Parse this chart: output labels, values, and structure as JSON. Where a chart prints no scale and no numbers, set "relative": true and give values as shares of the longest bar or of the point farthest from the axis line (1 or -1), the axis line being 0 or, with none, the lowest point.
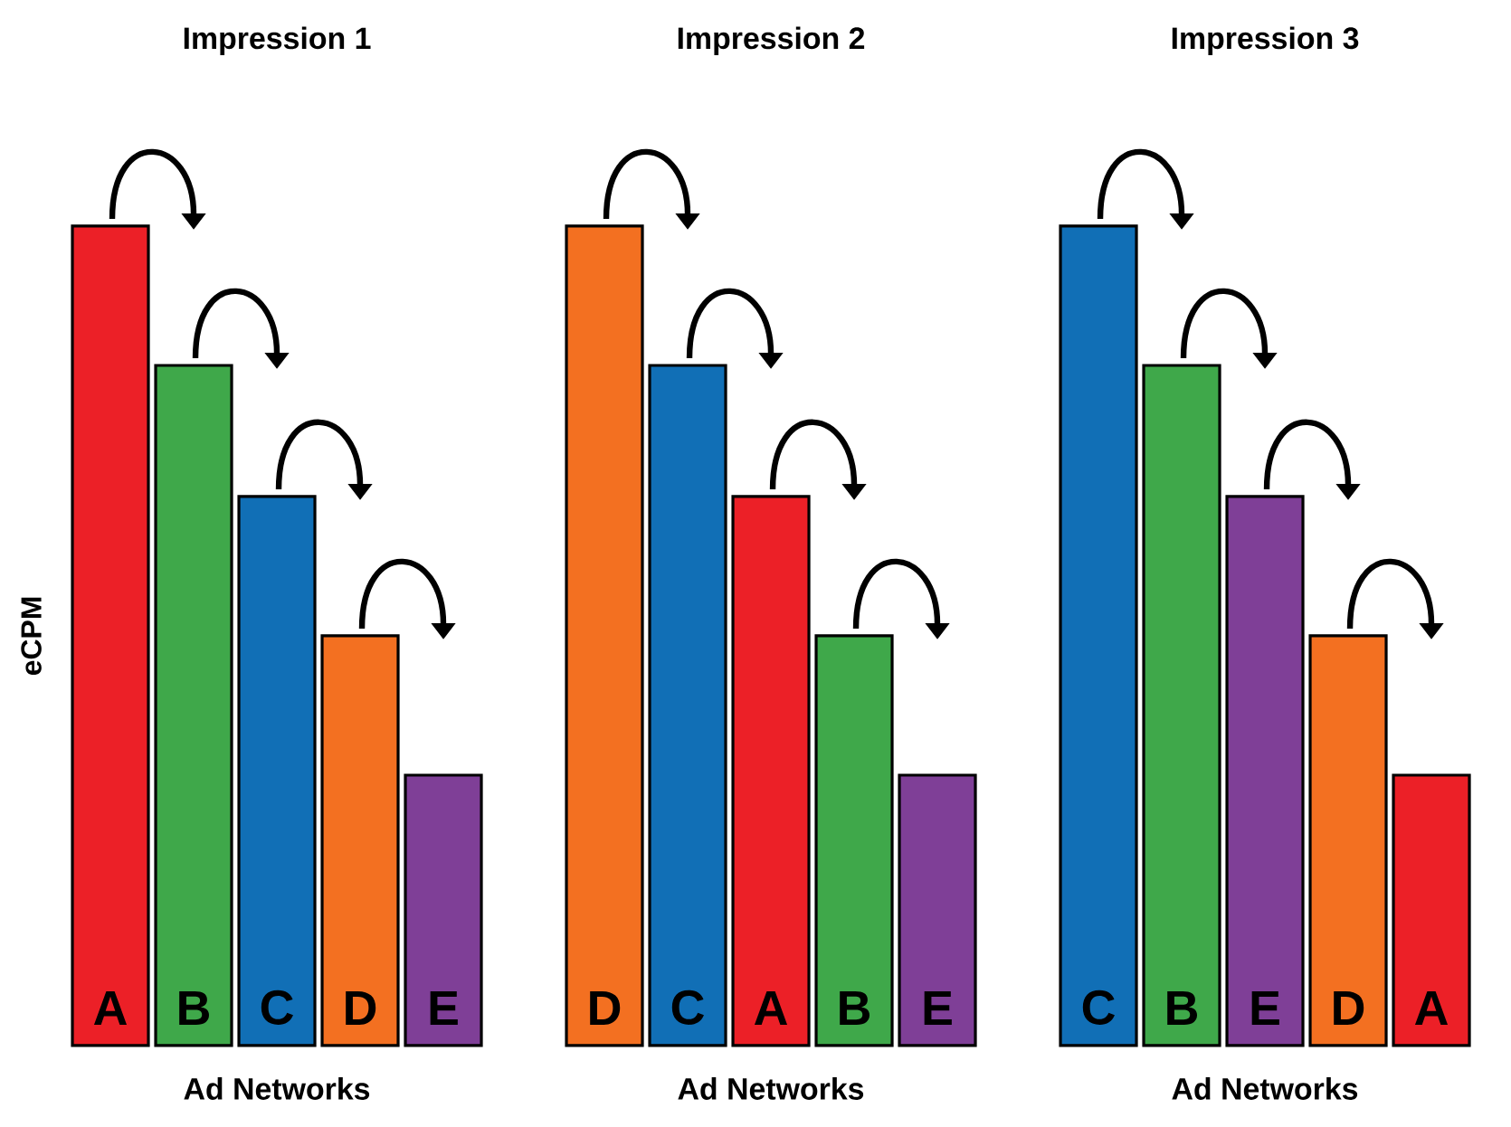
{
  "chart_data": [
    {
      "type": "bar",
      "title": "Impression 1",
      "xlabel": "Ad Networks",
      "ylabel": "eCPM",
      "relative": true,
      "categories": [
        "A",
        "B",
        "C",
        "D",
        "E"
      ],
      "values": [
        1,
        0.83,
        0.67,
        0.5,
        0.33
      ],
      "colors": [
        "#ec2027",
        "#3fa84a",
        "#116fb6",
        "#f37021",
        "#7f3f97"
      ]
    },
    {
      "type": "bar",
      "title": "Impression 2",
      "xlabel": "Ad Networks",
      "relative": true,
      "categories": [
        "D",
        "C",
        "A",
        "B",
        "E"
      ],
      "values": [
        1,
        0.83,
        0.67,
        0.5,
        0.33
      ],
      "colors": [
        "#f37021",
        "#116fb6",
        "#ec2027",
        "#3fa84a",
        "#7f3f97"
      ]
    },
    {
      "type": "bar",
      "title": "Impression 3",
      "xlabel": "Ad Networks",
      "relative": true,
      "categories": [
        "C",
        "B",
        "E",
        "D",
        "A"
      ],
      "values": [
        1,
        0.83,
        0.67,
        0.5,
        0.33
      ],
      "colors": [
        "#116fb6",
        "#3fa84a",
        "#7f3f97",
        "#f37021",
        "#ec2027"
      ]
    }
  ]
}
